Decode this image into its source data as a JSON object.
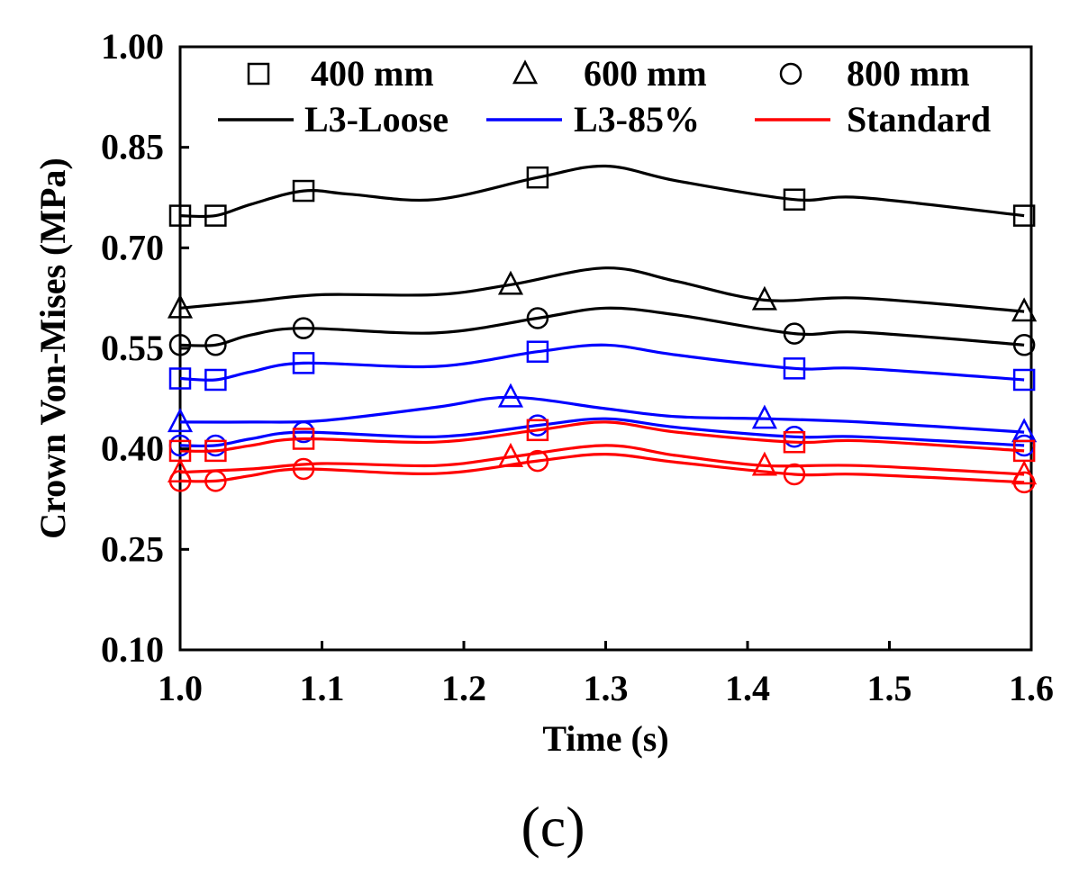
{
  "panel_label": "(c)",
  "chart_data": {
    "type": "line",
    "xlabel": "Time (s)",
    "ylabel": "Crown Von-Mises (MPa)",
    "xlim": [
      1.0,
      1.6
    ],
    "ylim": [
      0.1,
      1.0
    ],
    "xticks": [
      1.0,
      1.1,
      1.2,
      1.3,
      1.4,
      1.5,
      1.6
    ],
    "xtick_labels": [
      "1.0",
      "1.1",
      "1.2",
      "1.3",
      "1.4",
      "1.5",
      "1.6"
    ],
    "yticks": [
      0.1,
      0.25,
      0.4,
      0.55,
      0.7,
      0.85,
      1.0
    ],
    "ytick_labels": [
      "0.10",
      "0.25",
      "0.40",
      "0.55",
      "0.70",
      "0.85",
      "1.00"
    ],
    "grid": false,
    "legend": {
      "position": "top",
      "markers": [
        {
          "symbol": "square",
          "label": "400 mm"
        },
        {
          "symbol": "triangle",
          "label": "600 mm"
        },
        {
          "symbol": "circle",
          "label": "800 mm"
        }
      ],
      "lines": [
        {
          "label": "L3-Loose",
          "color": "#000000"
        },
        {
          "label": "L3-85%",
          "color": "#0000ff"
        },
        {
          "label": "Standard",
          "color": "#ff0000"
        }
      ]
    },
    "series": [
      {
        "name": "L3-Loose 400 mm",
        "color": "#000000",
        "marker": "square",
        "x": [
          1.0,
          1.025,
          1.05,
          1.087,
          1.12,
          1.18,
          1.252,
          1.3,
          1.35,
          1.433,
          1.48,
          1.595
        ],
        "y": [
          0.748,
          0.748,
          0.765,
          0.785,
          0.78,
          0.772,
          0.805,
          0.822,
          0.8,
          0.772,
          0.775,
          0.748
        ],
        "marker_x": [
          1.0,
          1.025,
          1.087,
          1.252,
          1.433,
          1.595
        ]
      },
      {
        "name": "L3-Loose 600 mm",
        "color": "#000000",
        "marker": "triangle",
        "x": [
          1.0,
          1.05,
          1.1,
          1.18,
          1.233,
          1.3,
          1.35,
          1.412,
          1.48,
          1.595
        ],
        "y": [
          0.61,
          0.62,
          0.63,
          0.63,
          0.645,
          0.67,
          0.65,
          0.622,
          0.625,
          0.605
        ],
        "marker_x": [
          1.0,
          1.233,
          1.412,
          1.595
        ]
      },
      {
        "name": "L3-Loose 800 mm",
        "color": "#000000",
        "marker": "circle",
        "x": [
          1.0,
          1.025,
          1.05,
          1.087,
          1.18,
          1.252,
          1.3,
          1.35,
          1.433,
          1.48,
          1.595
        ],
        "y": [
          0.555,
          0.555,
          0.57,
          0.58,
          0.573,
          0.595,
          0.61,
          0.6,
          0.572,
          0.574,
          0.555
        ],
        "marker_x": [
          1.0,
          1.025,
          1.087,
          1.252,
          1.433,
          1.595
        ]
      },
      {
        "name": "L3-85% 400 mm",
        "color": "#0000ff",
        "marker": "square",
        "x": [
          1.0,
          1.025,
          1.05,
          1.087,
          1.18,
          1.252,
          1.3,
          1.35,
          1.433,
          1.48,
          1.595
        ],
        "y": [
          0.505,
          0.503,
          0.515,
          0.528,
          0.523,
          0.545,
          0.555,
          0.54,
          0.52,
          0.52,
          0.503
        ],
        "marker_x": [
          1.0,
          1.025,
          1.087,
          1.252,
          1.433,
          1.595
        ]
      },
      {
        "name": "L3-85% 600 mm",
        "color": "#0000ff",
        "marker": "triangle",
        "x": [
          1.0,
          1.05,
          1.1,
          1.18,
          1.233,
          1.3,
          1.35,
          1.412,
          1.48,
          1.595
        ],
        "y": [
          0.44,
          0.44,
          0.442,
          0.462,
          0.477,
          0.46,
          0.448,
          0.445,
          0.44,
          0.425
        ],
        "marker_x": [
          1.0,
          1.233,
          1.412,
          1.595
        ]
      },
      {
        "name": "L3-85% 800 mm",
        "color": "#0000ff",
        "marker": "circle",
        "x": [
          1.0,
          1.025,
          1.05,
          1.087,
          1.18,
          1.252,
          1.3,
          1.35,
          1.433,
          1.48,
          1.595
        ],
        "y": [
          0.405,
          0.405,
          0.415,
          0.425,
          0.418,
          0.435,
          0.445,
          0.432,
          0.418,
          0.418,
          0.405
        ],
        "marker_x": [
          1.0,
          1.025,
          1.087,
          1.252,
          1.433,
          1.595
        ]
      },
      {
        "name": "Standard 400 mm",
        "color": "#ff0000",
        "marker": "square",
        "x": [
          1.0,
          1.025,
          1.05,
          1.087,
          1.18,
          1.252,
          1.3,
          1.35,
          1.433,
          1.48,
          1.595
        ],
        "y": [
          0.397,
          0.397,
          0.405,
          0.415,
          0.41,
          0.428,
          0.44,
          0.425,
          0.41,
          0.412,
          0.397
        ],
        "marker_x": [
          1.0,
          1.025,
          1.087,
          1.252,
          1.433,
          1.595
        ]
      },
      {
        "name": "Standard 600 mm",
        "color": "#ff0000",
        "marker": "triangle",
        "x": [
          1.0,
          1.05,
          1.1,
          1.18,
          1.233,
          1.3,
          1.35,
          1.412,
          1.48,
          1.595
        ],
        "y": [
          0.365,
          0.37,
          0.378,
          0.375,
          0.388,
          0.405,
          0.39,
          0.375,
          0.375,
          0.362
        ],
        "marker_x": [
          1.0,
          1.233,
          1.412,
          1.595
        ]
      },
      {
        "name": "Standard 800 mm",
        "color": "#ff0000",
        "marker": "circle",
        "x": [
          1.0,
          1.025,
          1.05,
          1.087,
          1.18,
          1.252,
          1.3,
          1.35,
          1.433,
          1.48,
          1.595
        ],
        "y": [
          0.352,
          0.352,
          0.36,
          0.37,
          0.363,
          0.382,
          0.392,
          0.38,
          0.362,
          0.362,
          0.35
        ],
        "marker_x": [
          1.0,
          1.025,
          1.087,
          1.252,
          1.433,
          1.595
        ]
      }
    ]
  }
}
